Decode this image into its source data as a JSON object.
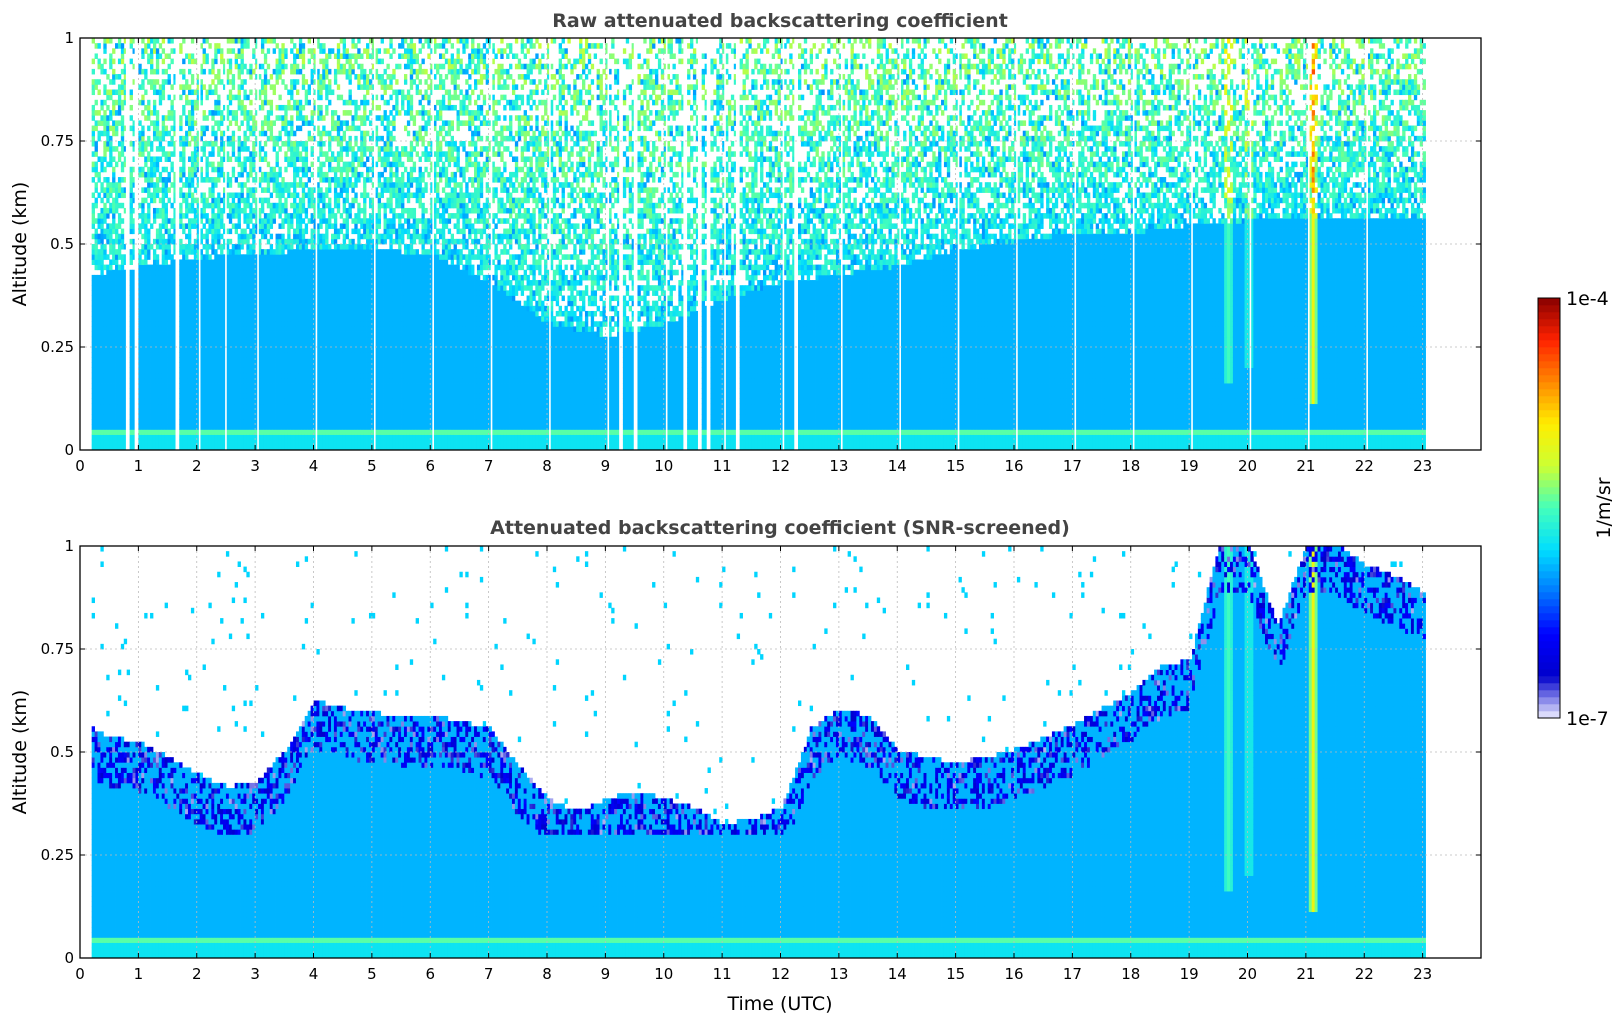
{
  "chart_data": [
    {
      "type": "heatmap",
      "title": "Raw attenuated backscattering coefficient",
      "xlabel": "",
      "ylabel": "Altitude (km)",
      "xlim": [
        0,
        24
      ],
      "ylim": [
        0,
        1
      ],
      "x_ticks": [
        "0",
        "1",
        "2",
        "3",
        "4",
        "5",
        "6",
        "7",
        "8",
        "9",
        "10",
        "11",
        "12",
        "13",
        "14",
        "15",
        "16",
        "17",
        "18",
        "19",
        "20",
        "21",
        "22",
        "23"
      ],
      "y_ticks": [
        "0",
        "0.25",
        "0.5",
        "0.75",
        "1"
      ],
      "grid": true,
      "data_time_range": [
        0.2,
        23.05
      ],
      "gap_times": [
        0.8,
        0.95,
        1.65,
        9.25,
        9.5,
        10.35,
        10.6,
        10.75,
        11.25,
        12.25
      ],
      "profile_gaps": [
        0.8,
        0.95,
        1.65,
        2.05,
        2.5,
        3.05,
        4.05,
        5.05,
        6.05,
        7.05,
        8.05,
        9.05,
        9.25,
        9.5,
        10.05,
        10.35,
        10.6,
        10.75,
        11.05,
        11.25,
        12.05,
        12.25,
        13.05,
        14.05,
        15.05,
        16.05,
        17.05,
        18.05,
        19.05,
        20.05,
        21.05,
        22.05
      ],
      "noise_onset_altitude_km": [
        [
          0.2,
          0.42
        ],
        [
          1,
          0.44
        ],
        [
          2,
          0.46
        ],
        [
          3,
          0.47
        ],
        [
          4,
          0.48
        ],
        [
          5,
          0.48
        ],
        [
          6,
          0.47
        ],
        [
          7,
          0.4
        ],
        [
          8,
          0.3
        ],
        [
          9,
          0.27
        ],
        [
          10,
          0.3
        ],
        [
          11,
          0.36
        ],
        [
          12,
          0.4
        ],
        [
          13,
          0.42
        ],
        [
          14,
          0.44
        ],
        [
          15,
          0.48
        ],
        [
          16,
          0.5
        ],
        [
          17,
          0.52
        ],
        [
          18,
          0.52
        ],
        [
          19,
          0.54
        ],
        [
          20,
          0.55
        ],
        [
          21,
          0.55
        ],
        [
          22,
          0.55
        ],
        [
          23,
          0.55
        ]
      ],
      "features": [
        {
          "time": 21.1,
          "bottom_km": 0.1,
          "peak": "1e-5",
          "note": "strong signal column"
        },
        {
          "time": 19.65,
          "bottom_km": 0.15,
          "peak": "3e-6"
        },
        {
          "time": 20.0,
          "bottom_km": 0.2,
          "peak": "2e-6"
        }
      ]
    },
    {
      "type": "heatmap",
      "title": "Attenuated backscattering coefficient (SNR-screened)",
      "xlabel": "Time (UTC)",
      "ylabel": "Altitude (km)",
      "xlim": [
        0,
        24
      ],
      "ylim": [
        0,
        1
      ],
      "x_ticks": [
        "0",
        "1",
        "2",
        "3",
        "4",
        "5",
        "6",
        "7",
        "8",
        "9",
        "10",
        "11",
        "12",
        "13",
        "14",
        "15",
        "16",
        "17",
        "18",
        "19",
        "20",
        "21",
        "22",
        "23"
      ],
      "y_ticks": [
        "0",
        "0.25",
        "0.5",
        "0.75",
        "1"
      ],
      "grid": true,
      "data_time_range": [
        0.2,
        23.05
      ],
      "valid_top_altitude_km": [
        [
          0.2,
          0.55
        ],
        [
          0.5,
          0.53
        ],
        [
          1.0,
          0.52
        ],
        [
          1.5,
          0.48
        ],
        [
          2.0,
          0.44
        ],
        [
          2.5,
          0.41
        ],
        [
          3.0,
          0.42
        ],
        [
          3.5,
          0.5
        ],
        [
          4.0,
          0.62
        ],
        [
          4.5,
          0.6
        ],
        [
          5.0,
          0.59
        ],
        [
          5.5,
          0.58
        ],
        [
          6.0,
          0.58
        ],
        [
          6.5,
          0.57
        ],
        [
          7.0,
          0.55
        ],
        [
          7.5,
          0.46
        ],
        [
          8.0,
          0.38
        ],
        [
          8.5,
          0.35
        ],
        [
          9.0,
          0.38
        ],
        [
          9.5,
          0.4
        ],
        [
          10.0,
          0.38
        ],
        [
          10.5,
          0.36
        ],
        [
          11.0,
          0.32
        ],
        [
          11.5,
          0.33
        ],
        [
          12.0,
          0.36
        ],
        [
          12.5,
          0.55
        ],
        [
          13.0,
          0.6
        ],
        [
          13.5,
          0.58
        ],
        [
          14.0,
          0.5
        ],
        [
          14.5,
          0.48
        ],
        [
          15.0,
          0.47
        ],
        [
          15.5,
          0.48
        ],
        [
          16.0,
          0.5
        ],
        [
          16.5,
          0.53
        ],
        [
          17.0,
          0.56
        ],
        [
          17.5,
          0.6
        ],
        [
          18.0,
          0.64
        ],
        [
          18.5,
          0.7
        ],
        [
          19.0,
          0.72
        ],
        [
          19.5,
          1.0
        ],
        [
          20.0,
          1.0
        ],
        [
          20.5,
          0.8
        ],
        [
          21.0,
          1.0
        ],
        [
          21.5,
          1.0
        ],
        [
          22.0,
          0.95
        ],
        [
          22.5,
          0.92
        ],
        [
          23.05,
          0.88
        ]
      ],
      "features": [
        {
          "time": 21.1,
          "bottom_km": 0.1,
          "peak": "1e-5",
          "note": "strong signal column"
        },
        {
          "time": 19.65,
          "bottom_km": 0.15,
          "peak": "3e-6"
        },
        {
          "time": 20.0,
          "bottom_km": 0.2,
          "peak": "2e-6"
        }
      ]
    }
  ],
  "colorbar": {
    "label": "1/m/sr",
    "max_label": "1e-4",
    "min_label": "1e-7",
    "scale": "log",
    "range": [
      1e-07,
      0.0001
    ],
    "colormap": "jet",
    "colors": [
      "#eeeeff",
      "#0000cc",
      "#0000ff",
      "#0077ff",
      "#00ddff",
      "#44ffbb",
      "#ccff33",
      "#ffee00",
      "#ff8800",
      "#ff2200",
      "#880000"
    ]
  },
  "style": {
    "grid_color": "#bbbbbb",
    "axis_color": "#000000",
    "title_color": "#444444",
    "base_blue": "#1a2eef"
  }
}
